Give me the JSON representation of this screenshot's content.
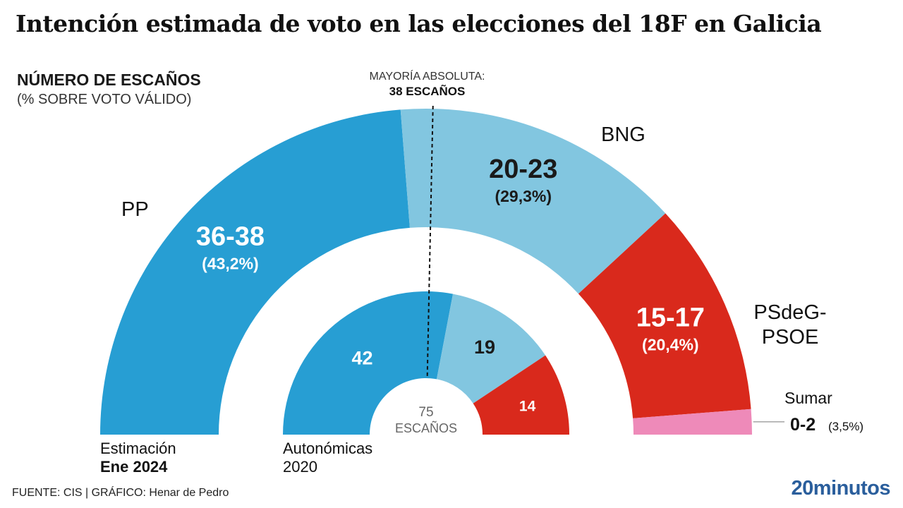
{
  "title": "Intención estimada de voto en las elecciones del 18F en Galicia",
  "subtitle": {
    "main": "NÚMERO DE ESCAÑOS",
    "sub": "(% SOBRE VOTO VÁLIDO)"
  },
  "majority": {
    "line1": "MAYORÍA ABSOLUTA:",
    "line2": "38 ESCAÑOS",
    "seats": 38
  },
  "center_label": {
    "value": "75",
    "unit": "ESCAÑOS"
  },
  "ring_labels": {
    "outer_line1": "Estimación",
    "outer_line2": "Ene 2024",
    "inner_line1": "Autonómicas",
    "inner_line2": "2020"
  },
  "footer": "FUENTE: CIS  |  GRÁFICO: Henar de Pedro",
  "brand": "20minutos",
  "colors": {
    "PP": "#279ed3",
    "BNG": "#82c6e0",
    "PSdeG-PSOE": "#d9291c",
    "Sumar": "#ee8ab9"
  },
  "chart_data": [
    {
      "type": "pie",
      "name": "Estimación Ene 2024",
      "total_seats": 75,
      "series": [
        {
          "party": "PP",
          "seats": [
            36,
            38
          ],
          "seats_label": "36-38",
          "pct_label": "(43,2%)",
          "pct": 43.2,
          "color": "#279ed3"
        },
        {
          "party": "BNG",
          "seats": [
            20,
            23
          ],
          "seats_label": "20-23",
          "pct_label": "(29,3%)",
          "pct": 29.3,
          "color": "#82c6e0"
        },
        {
          "party": "PSdeG-PSOE",
          "seats": [
            15,
            17
          ],
          "seats_label": "15-17",
          "pct_label": "(20,4%)",
          "pct": 20.4,
          "color": "#d9291c"
        },
        {
          "party": "Sumar",
          "seats": [
            0,
            2
          ],
          "seats_label": "0-2",
          "pct_label": "(3,5%)",
          "pct": 3.5,
          "color": "#ee8ab9"
        }
      ]
    },
    {
      "type": "pie",
      "name": "Autonómicas 2020",
      "total_seats": 75,
      "series": [
        {
          "party": "PP",
          "seats": 42,
          "seats_label": "42",
          "color": "#279ed3"
        },
        {
          "party": "BNG",
          "seats": 19,
          "seats_label": "19",
          "color": "#82c6e0"
        },
        {
          "party": "PSdeG-PSOE",
          "seats": 14,
          "seats_label": "14",
          "color": "#d9291c"
        }
      ]
    }
  ]
}
